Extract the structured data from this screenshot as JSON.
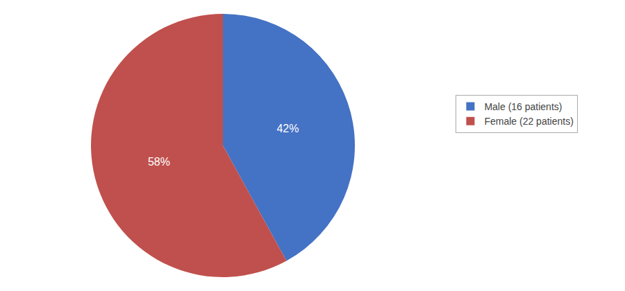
{
  "chart_data": {
    "type": "pie",
    "categories": [
      "Male (16 patients)",
      "Female (22 patients)"
    ],
    "values": [
      42,
      58
    ],
    "value_labels": [
      "42%",
      "58%"
    ],
    "colors": [
      "#4472C4",
      "#C0504D"
    ],
    "data_labels": true,
    "legend": "right"
  }
}
